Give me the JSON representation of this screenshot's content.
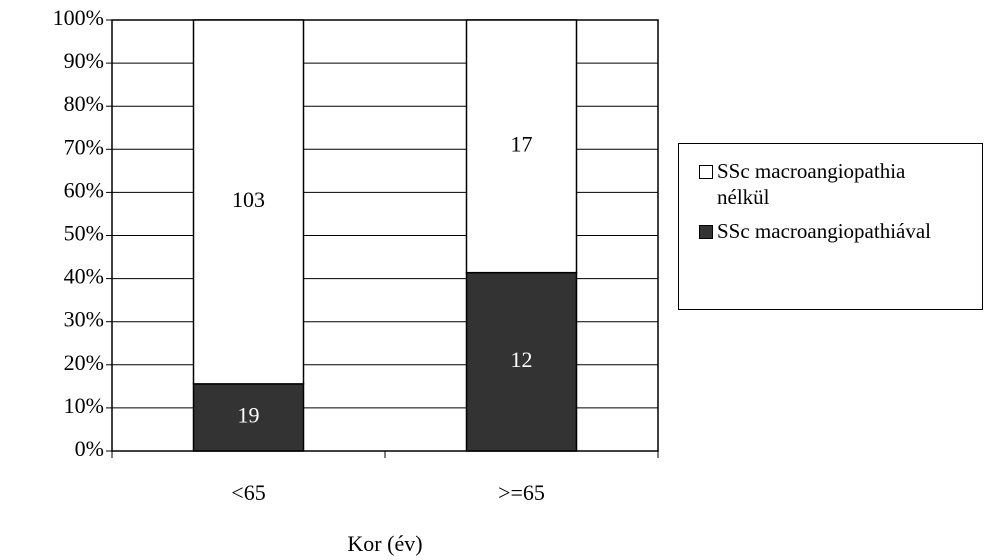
{
  "chart_data": {
    "type": "bar",
    "stacking": "percent",
    "x_label": "Kor (év)",
    "categories": [
      "<65",
      ">=65"
    ],
    "series": [
      {
        "name": "SSc macroangiopathiával",
        "color": "#333333",
        "values": [
          19,
          12
        ]
      },
      {
        "name": "SSc macroangiopathia nélkül",
        "color": "#ffffff",
        "values": [
          103,
          17
        ]
      }
    ],
    "ylim": [
      0,
      100
    ],
    "yticks": [
      {
        "value": 0,
        "label": "0%"
      },
      {
        "value": 10,
        "label": "10%"
      },
      {
        "value": 20,
        "label": "20%"
      },
      {
        "value": 30,
        "label": "30%"
      },
      {
        "value": 40,
        "label": "40%"
      },
      {
        "value": 50,
        "label": "50%"
      },
      {
        "value": 60,
        "label": "60%"
      },
      {
        "value": 70,
        "label": "70%"
      },
      {
        "value": 80,
        "label": "80%"
      },
      {
        "value": 90,
        "label": "90%"
      },
      {
        "value": 100,
        "label": "100%"
      }
    ],
    "grid": true,
    "legend": "right"
  }
}
